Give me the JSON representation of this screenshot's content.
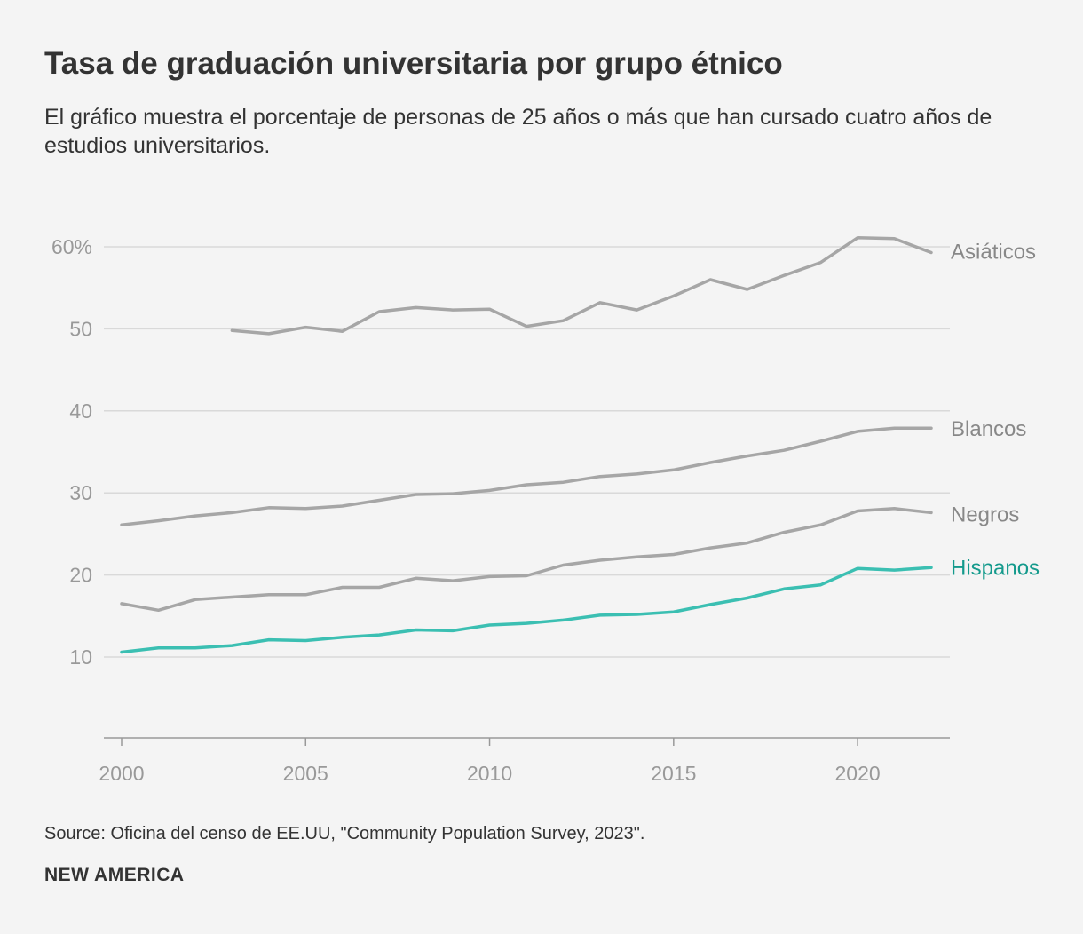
{
  "title": "Tasa de graduación universitaria por grupo étnico",
  "subtitle": "El gráfico muestra el porcentaje de personas de 25 años o más que han cursado cuatro años de estudios universitarios.",
  "source": "Source: Oficina del censo de EE.UU, \"Community Population Survey, 2023\".",
  "brand": "NEW AMERICA",
  "chart_data": {
    "type": "line",
    "title": "Tasa de graduación universitaria por grupo étnico",
    "xlabel": "",
    "ylabel": "",
    "xlim": [
      2000,
      2022
    ],
    "ylim": [
      0,
      60
    ],
    "grid": true,
    "x_ticks": [
      {
        "value": 2000,
        "label": "2000"
      },
      {
        "value": 2005,
        "label": "2005"
      },
      {
        "value": 2010,
        "label": "2010"
      },
      {
        "value": 2015,
        "label": "2015"
      },
      {
        "value": 2020,
        "label": "2020"
      }
    ],
    "y_ticks": [
      {
        "value": 10,
        "label": "10"
      },
      {
        "value": 20,
        "label": "20"
      },
      {
        "value": 30,
        "label": "30"
      },
      {
        "value": 40,
        "label": "40"
      },
      {
        "value": 50,
        "label": "50"
      },
      {
        "value": 60,
        "label": "60%"
      }
    ],
    "series": [
      {
        "name": "Asiáticos",
        "color": "#a6a6a6",
        "label_color": "#888888",
        "x": [
          2003,
          2004,
          2005,
          2006,
          2007,
          2008,
          2009,
          2010,
          2011,
          2012,
          2013,
          2014,
          2015,
          2016,
          2017,
          2018,
          2019,
          2020,
          2021,
          2022
        ],
        "values": [
          49.8,
          49.4,
          50.2,
          49.7,
          52.1,
          52.6,
          52.3,
          52.4,
          50.3,
          51.0,
          53.2,
          52.3,
          54.0,
          56.0,
          54.8,
          56.5,
          58.1,
          61.1,
          61.0,
          59.3
        ]
      },
      {
        "name": "Blancos",
        "color": "#a6a6a6",
        "label_color": "#888888",
        "x": [
          2000,
          2001,
          2002,
          2003,
          2004,
          2005,
          2006,
          2007,
          2008,
          2009,
          2010,
          2011,
          2012,
          2013,
          2014,
          2015,
          2016,
          2017,
          2018,
          2019,
          2020,
          2021,
          2022
        ],
        "values": [
          26.1,
          26.6,
          27.2,
          27.6,
          28.2,
          28.1,
          28.4,
          29.1,
          29.8,
          29.9,
          30.3,
          31.0,
          31.3,
          32.0,
          32.3,
          32.8,
          33.7,
          34.5,
          35.2,
          36.3,
          37.5,
          37.9,
          37.9
        ]
      },
      {
        "name": "Negros",
        "color": "#a6a6a6",
        "label_color": "#888888",
        "x": [
          2000,
          2001,
          2002,
          2003,
          2004,
          2005,
          2006,
          2007,
          2008,
          2009,
          2010,
          2011,
          2012,
          2013,
          2014,
          2015,
          2016,
          2017,
          2018,
          2019,
          2020,
          2021,
          2022
        ],
        "values": [
          16.5,
          15.7,
          17.0,
          17.3,
          17.6,
          17.6,
          18.5,
          18.5,
          19.6,
          19.3,
          19.8,
          19.9,
          21.2,
          21.8,
          22.2,
          22.5,
          23.3,
          23.9,
          25.2,
          26.1,
          27.8,
          28.1,
          27.6
        ]
      },
      {
        "name": "Hispanos",
        "color": "#3bbfb2",
        "label_color": "#149a8c",
        "x": [
          2000,
          2001,
          2002,
          2003,
          2004,
          2005,
          2006,
          2007,
          2008,
          2009,
          2010,
          2011,
          2012,
          2013,
          2014,
          2015,
          2016,
          2017,
          2018,
          2019,
          2020,
          2021,
          2022
        ],
        "values": [
          10.6,
          11.1,
          11.1,
          11.4,
          12.1,
          12.0,
          12.4,
          12.7,
          13.3,
          13.2,
          13.9,
          14.1,
          14.5,
          15.1,
          15.2,
          15.5,
          16.4,
          17.2,
          18.3,
          18.8,
          20.8,
          20.6,
          20.9
        ]
      }
    ]
  }
}
